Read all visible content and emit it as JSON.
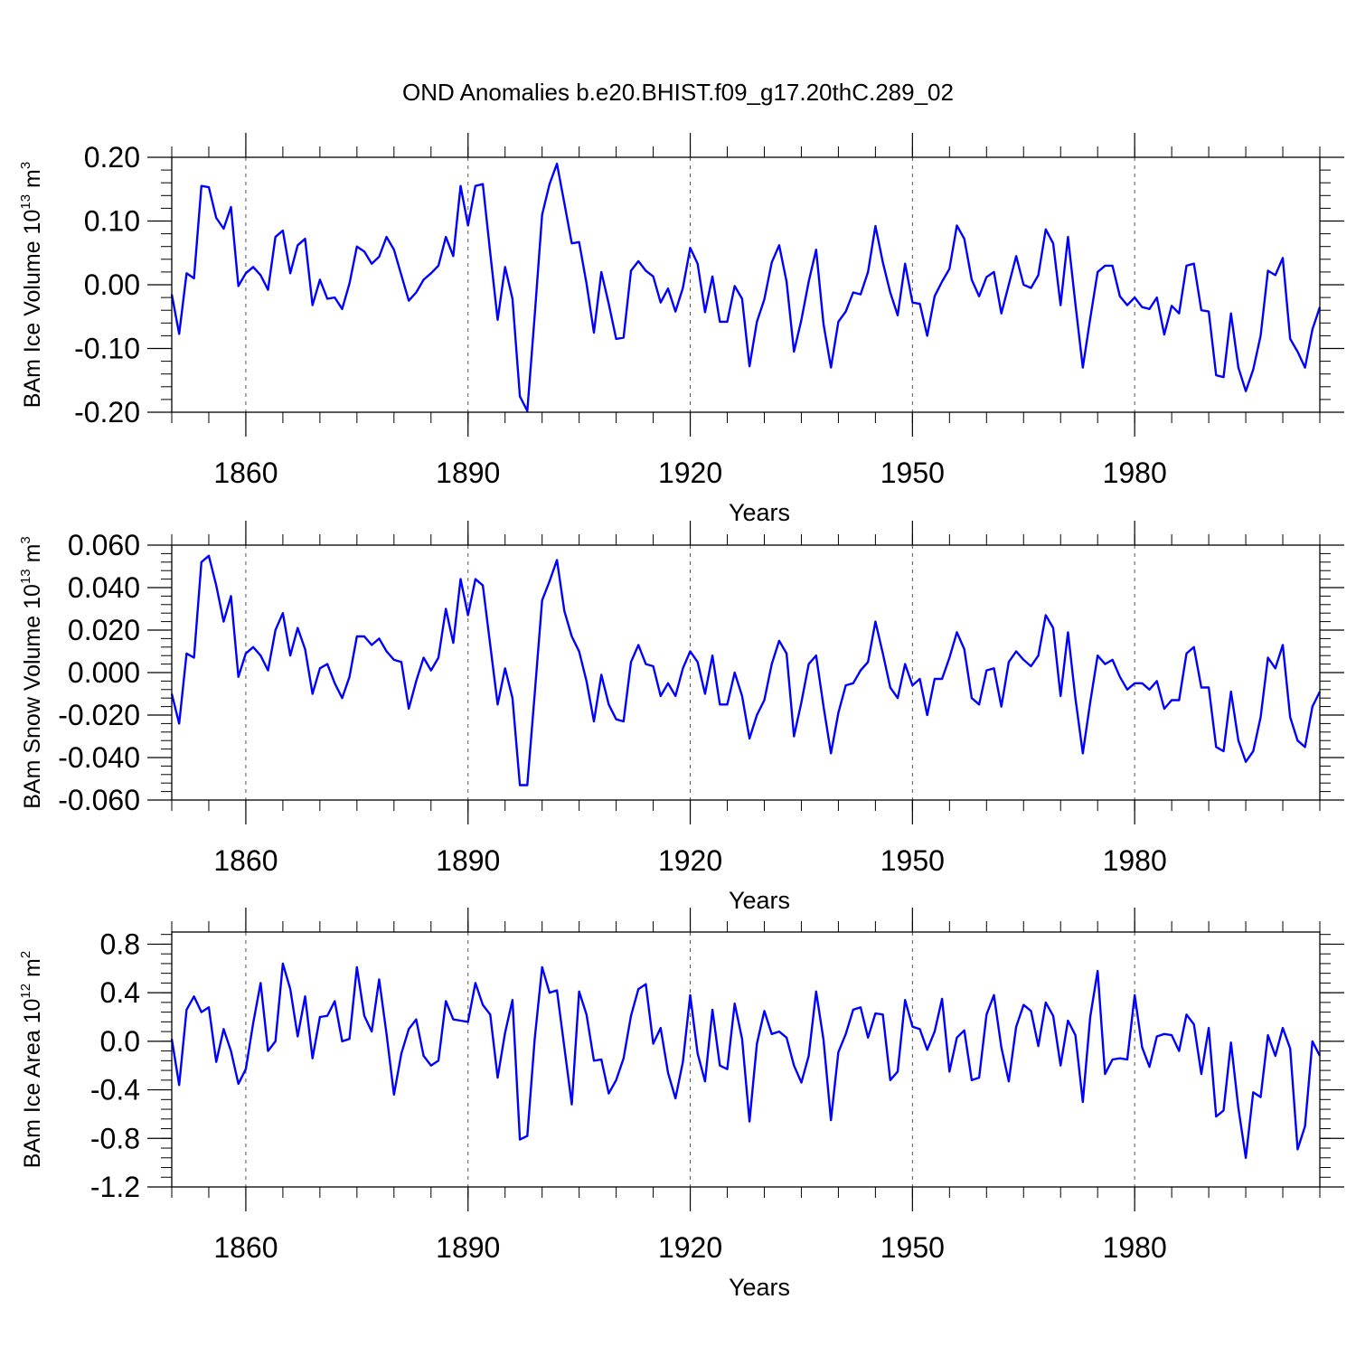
{
  "title": "OND Anomalies b.e20.BHIST.f09_g17.20thC.289_02",
  "chart_data": [
    {
      "type": "line",
      "ylabel": {
        "main": "BAm Ice Volume 10",
        "exp": "13",
        "unit": " m",
        "unit_exp": "3"
      },
      "xlabel": "Years",
      "xlim": [
        1850,
        2005
      ],
      "ylim": [
        -0.2,
        0.2
      ],
      "yticks": [
        -0.2,
        -0.1,
        0.0,
        0.1,
        0.2
      ],
      "ytick_labels": [
        "-0.20",
        "-0.10",
        "0.00",
        "0.10",
        "0.20"
      ],
      "xticks": [
        1860,
        1890,
        1920,
        1950,
        1980
      ],
      "xtick_labels": [
        "1860",
        "1890",
        "1920",
        "1950",
        "1980"
      ],
      "grid_x": true,
      "color": "#0000ff",
      "x_start": 1850,
      "values": [
        -0.015,
        -0.077,
        0.018,
        0.01,
        0.155,
        0.153,
        0.105,
        0.088,
        0.122,
        -0.002,
        0.018,
        0.028,
        0.015,
        -0.008,
        0.075,
        0.085,
        0.018,
        0.062,
        0.072,
        -0.032,
        0.008,
        -0.022,
        -0.02,
        -0.038,
        0.002,
        0.06,
        0.052,
        0.033,
        0.044,
        0.075,
        0.055,
        0.015,
        -0.025,
        -0.012,
        0.008,
        0.018,
        0.03,
        0.075,
        0.045,
        0.155,
        0.093,
        0.155,
        0.158,
        0.05,
        -0.055,
        0.028,
        -0.022,
        -0.175,
        -0.198,
        -0.048,
        0.11,
        0.158,
        0.19,
        0.128,
        0.065,
        0.067,
        0.002,
        -0.075,
        0.02,
        -0.03,
        -0.085,
        -0.083,
        0.022,
        0.037,
        0.022,
        0.013,
        -0.028,
        -0.006,
        -0.042,
        -0.005,
        0.058,
        0.033,
        -0.043,
        0.013,
        -0.058,
        -0.058,
        -0.002,
        -0.022,
        -0.128,
        -0.058,
        -0.023,
        0.035,
        0.062,
        0.005,
        -0.105,
        -0.055,
        0.005,
        0.055,
        -0.062,
        -0.13,
        -0.058,
        -0.042,
        -0.012,
        -0.015,
        0.02,
        0.092,
        0.035,
        -0.012,
        -0.048,
        0.033,
        -0.028,
        -0.03,
        -0.08,
        -0.018,
        0.005,
        0.025,
        0.093,
        0.072,
        0.008,
        -0.018,
        0.012,
        0.02,
        -0.045,
        0.0,
        0.045,
        0.0,
        -0.005,
        0.015,
        0.087,
        0.065,
        -0.032,
        0.075,
        -0.03,
        -0.13,
        -0.053,
        0.02,
        0.03,
        0.03,
        -0.018,
        -0.032,
        -0.02,
        -0.035,
        -0.038,
        -0.02,
        -0.078,
        -0.033,
        -0.045,
        0.03,
        0.033,
        -0.04,
        -0.042,
        -0.142,
        -0.145,
        -0.045,
        -0.13,
        -0.167,
        -0.133,
        -0.08,
        0.022,
        0.015,
        0.042,
        -0.085,
        -0.105,
        -0.13,
        -0.07,
        -0.035
      ]
    },
    {
      "type": "line",
      "ylabel": {
        "main": "BAm Snow Volume 10",
        "exp": "13",
        "unit": " m",
        "unit_exp": "3"
      },
      "xlabel": "Years",
      "xlim": [
        1850,
        2005
      ],
      "ylim": [
        -0.06,
        0.06
      ],
      "yticks": [
        -0.06,
        -0.04,
        -0.02,
        0.0,
        0.02,
        0.04,
        0.06
      ],
      "ytick_labels": [
        "-0.060",
        "-0.040",
        "-0.020",
        "0.000",
        "0.020",
        "0.040",
        "0.060"
      ],
      "xticks": [
        1860,
        1890,
        1920,
        1950,
        1980
      ],
      "xtick_labels": [
        "1860",
        "1890",
        "1920",
        "1950",
        "1980"
      ],
      "grid_x": true,
      "color": "#0000ff",
      "x_start": 1850,
      "values": [
        -0.01,
        -0.024,
        0.009,
        0.007,
        0.052,
        0.055,
        0.041,
        0.024,
        0.036,
        -0.002,
        0.009,
        0.012,
        0.008,
        0.001,
        0.02,
        0.028,
        0.008,
        0.021,
        0.011,
        -0.01,
        0.002,
        0.004,
        -0.005,
        -0.012,
        -0.002,
        0.017,
        0.017,
        0.013,
        0.016,
        0.01,
        0.006,
        0.005,
        -0.017,
        -0.004,
        0.007,
        0.001,
        0.007,
        0.03,
        0.014,
        0.044,
        0.027,
        0.044,
        0.041,
        0.013,
        -0.015,
        0.002,
        -0.012,
        -0.053,
        -0.053,
        -0.01,
        0.034,
        0.043,
        0.053,
        0.029,
        0.017,
        0.01,
        -0.004,
        -0.023,
        -0.001,
        -0.015,
        -0.022,
        -0.023,
        0.005,
        0.013,
        0.004,
        0.003,
        -0.011,
        -0.005,
        -0.011,
        0.002,
        0.01,
        0.005,
        -0.01,
        0.008,
        -0.015,
        -0.015,
        0.0,
        -0.011,
        -0.031,
        -0.02,
        -0.013,
        0.004,
        0.015,
        0.009,
        -0.03,
        -0.014,
        0.004,
        0.008,
        -0.016,
        -0.038,
        -0.019,
        -0.006,
        -0.005,
        0.001,
        0.005,
        0.024,
        0.009,
        -0.007,
        -0.012,
        0.004,
        -0.006,
        -0.003,
        -0.02,
        -0.003,
        -0.003,
        0.007,
        0.019,
        0.011,
        -0.012,
        -0.015,
        0.001,
        0.002,
        -0.016,
        0.005,
        0.01,
        0.006,
        0.003,
        0.008,
        0.027,
        0.021,
        -0.011,
        0.019,
        -0.012,
        -0.038,
        -0.014,
        0.008,
        0.004,
        0.006,
        -0.002,
        -0.008,
        -0.005,
        -0.005,
        -0.008,
        -0.004,
        -0.017,
        -0.013,
        -0.013,
        0.009,
        0.012,
        -0.007,
        -0.007,
        -0.035,
        -0.037,
        -0.009,
        -0.032,
        -0.042,
        -0.037,
        -0.021,
        0.007,
        0.002,
        0.013,
        -0.021,
        -0.032,
        -0.035,
        -0.016,
        -0.009
      ]
    },
    {
      "type": "line",
      "ylabel": {
        "main": "BAm Ice Area 10",
        "exp": "12",
        "unit": " m",
        "unit_exp": "2"
      },
      "xlabel": "Years",
      "xlim": [
        1850,
        2005
      ],
      "ylim": [
        -1.2,
        0.9
      ],
      "yticks": [
        -1.2,
        -0.8,
        -0.4,
        0.0,
        0.4,
        0.8
      ],
      "ytick_labels": [
        "-1.2",
        "-0.8",
        "-0.4",
        "0.0",
        "0.4",
        "0.8"
      ],
      "xticks": [
        1860,
        1890,
        1920,
        1950,
        1980
      ],
      "xtick_labels": [
        "1860",
        "1890",
        "1920",
        "1950",
        "1980"
      ],
      "grid_x": true,
      "color": "#0000ff",
      "x_start": 1850,
      "values": [
        0.02,
        -0.36,
        0.26,
        0.37,
        0.24,
        0.28,
        -0.17,
        0.1,
        -0.08,
        -0.35,
        -0.23,
        0.15,
        0.48,
        -0.08,
        0.0,
        0.64,
        0.43,
        0.04,
        0.37,
        -0.14,
        0.2,
        0.21,
        0.33,
        0.0,
        0.02,
        0.61,
        0.21,
        0.08,
        0.51,
        0.06,
        -0.44,
        -0.1,
        0.1,
        0.18,
        -0.12,
        -0.2,
        -0.16,
        0.33,
        0.18,
        0.17,
        0.16,
        0.48,
        0.3,
        0.22,
        -0.3,
        0.07,
        0.34,
        -0.81,
        -0.78,
        0.02,
        0.61,
        0.4,
        0.42,
        -0.05,
        -0.52,
        0.41,
        0.22,
        -0.16,
        -0.15,
        -0.43,
        -0.32,
        -0.14,
        0.21,
        0.43,
        0.47,
        -0.02,
        0.11,
        -0.26,
        -0.47,
        -0.17,
        0.38,
        -0.1,
        -0.33,
        0.26,
        -0.2,
        -0.23,
        0.31,
        0.02,
        -0.66,
        -0.02,
        0.25,
        0.06,
        0.08,
        0.03,
        -0.2,
        -0.34,
        -0.12,
        0.41,
        0.01,
        -0.65,
        -0.09,
        0.06,
        0.26,
        0.28,
        0.03,
        0.23,
        0.22,
        -0.32,
        -0.25,
        0.34,
        0.12,
        0.1,
        -0.07,
        0.08,
        0.35,
        -0.25,
        0.03,
        0.09,
        -0.32,
        -0.3,
        0.22,
        0.38,
        -0.05,
        -0.33,
        0.12,
        0.3,
        0.25,
        -0.04,
        0.32,
        0.21,
        -0.2,
        0.17,
        0.05,
        -0.5,
        0.2,
        0.58,
        -0.27,
        -0.15,
        -0.14,
        -0.15,
        0.38,
        -0.05,
        -0.21,
        0.04,
        0.06,
        0.05,
        -0.08,
        0.22,
        0.14,
        -0.27,
        0.11,
        -0.62,
        -0.57,
        -0.01,
        -0.55,
        -0.96,
        -0.42,
        -0.46,
        0.05,
        -0.12,
        0.11,
        -0.06,
        -0.89,
        -0.7,
        0.0,
        -0.12
      ]
    }
  ]
}
